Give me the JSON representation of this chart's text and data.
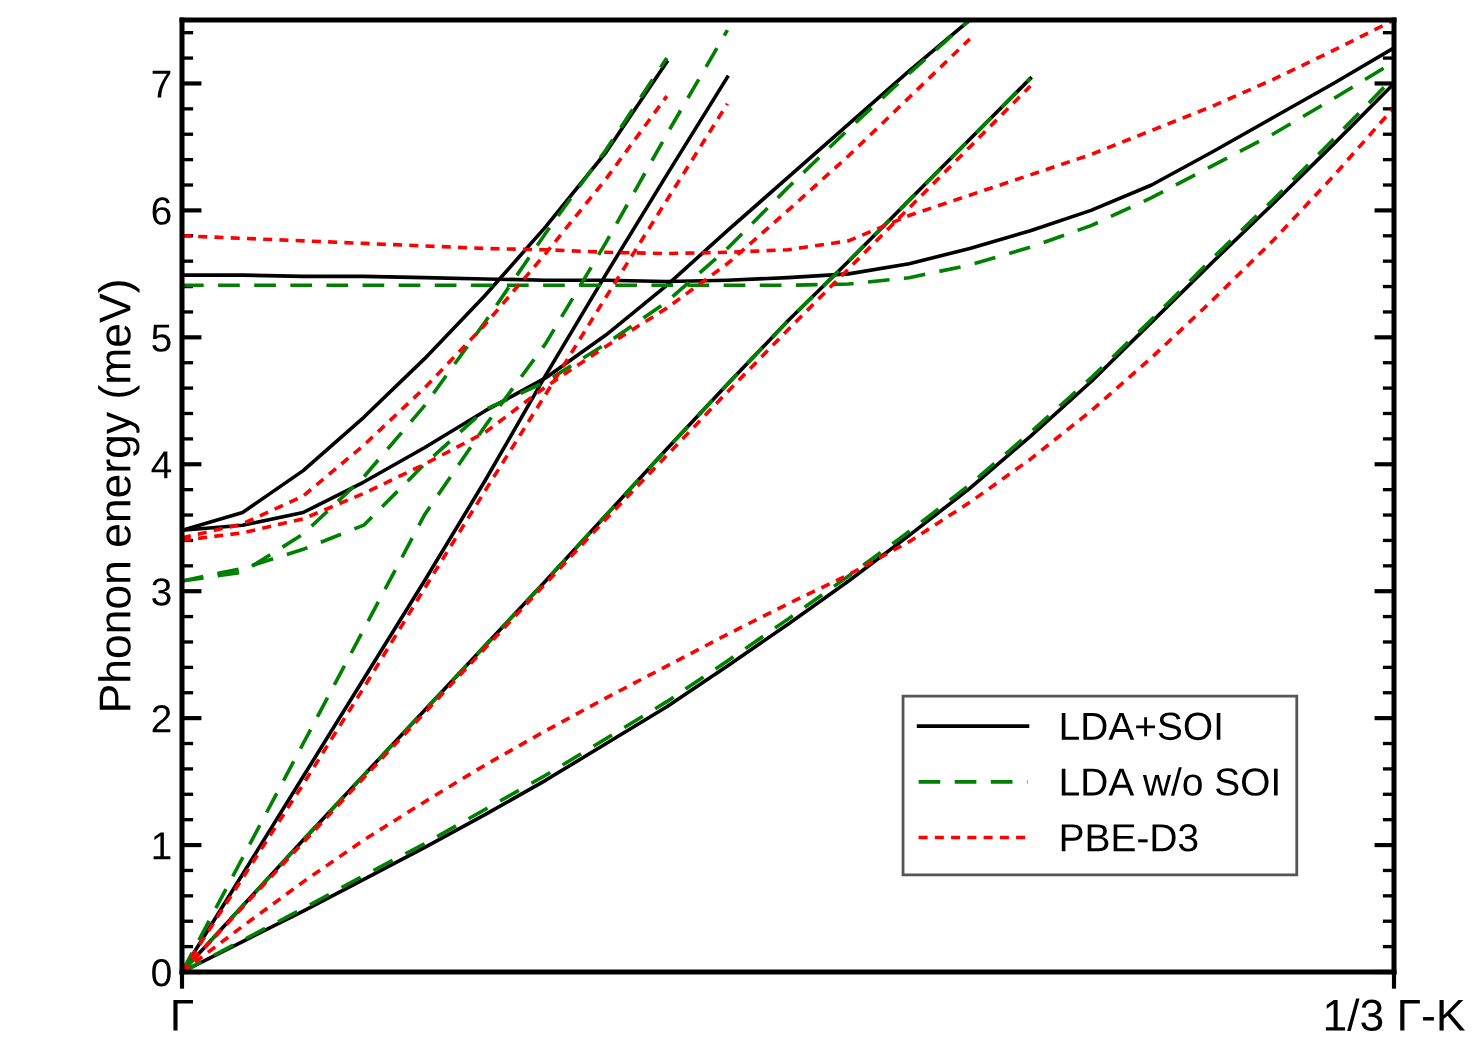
{
  "chart_data": {
    "type": "line",
    "ylabel": "Phonon energy (meV)",
    "categories": [
      "Γ",
      null,
      null,
      null,
      null,
      null,
      null,
      null,
      null,
      null,
      null,
      null,
      null,
      null,
      null,
      null,
      null,
      null,
      null,
      null,
      "1/3 Γ-K"
    ],
    "ylim": [
      0,
      7.5
    ],
    "yticks": [
      0,
      1,
      2,
      3,
      4,
      5,
      6,
      7
    ],
    "grid": false,
    "legend": "bottom right",
    "marker": "none",
    "series": [
      {
        "name": "LDA+SOI",
        "color": "#000000",
        "line_style": "solid",
        "values": [
          0,
          0.24,
          0.48,
          0.73,
          0.98,
          1.24,
          1.51,
          1.8,
          2.09,
          2.41,
          2.74,
          3.08,
          3.44,
          3.81,
          4.22,
          4.65,
          5.12,
          5.59,
          6.05,
          6.52,
          7.0
        ]
      },
      {
        "color": "#000000",
        "line_style": "solid",
        "values": [
          0,
          0.52,
          1.04,
          1.55,
          2.06,
          2.57,
          3.08,
          3.6,
          4.12,
          4.63,
          5.13,
          5.6,
          6.08,
          6.56,
          7.04,
          null,
          null,
          null,
          null,
          null,
          null
        ]
      },
      {
        "color": "#000000",
        "line_style": "solid",
        "values": [
          0,
          0.77,
          1.54,
          2.31,
          3.08,
          3.87,
          4.7,
          5.5,
          6.28,
          7.05,
          null,
          null,
          null,
          null,
          null,
          null,
          null,
          null,
          null,
          null,
          null
        ]
      },
      {
        "color": "#000000",
        "line_style": "solid",
        "values": [
          5.49,
          5.49,
          5.48,
          5.48,
          5.47,
          5.46,
          5.45,
          5.45,
          5.44,
          5.45,
          5.47,
          5.5,
          5.58,
          5.7,
          5.84,
          6.0,
          6.2,
          6.46,
          6.73,
          7.0,
          7.28
        ]
      },
      {
        "color": "#000000",
        "line_style": "solid",
        "values": [
          3.48,
          3.62,
          3.95,
          4.37,
          4.83,
          5.33,
          5.87,
          6.46,
          7.17,
          null,
          null,
          null,
          null,
          null,
          null,
          null,
          null,
          null,
          null,
          null,
          null
        ]
      },
      {
        "color": "#000000",
        "line_style": "solid",
        "values": [
          3.48,
          3.52,
          3.62,
          3.86,
          4.13,
          4.42,
          4.68,
          5.02,
          5.41,
          5.84,
          6.26,
          6.68,
          7.1,
          7.5,
          null,
          null,
          null,
          null,
          null,
          null,
          null
        ]
      },
      {
        "name": "LDA w/o SOI",
        "color": "#008000",
        "line_style": "dashed",
        "values": [
          0,
          0.25,
          0.5,
          0.76,
          1.01,
          1.28,
          1.55,
          1.84,
          2.13,
          2.45,
          2.78,
          3.12,
          3.47,
          3.84,
          4.25,
          4.68,
          5.14,
          5.62,
          6.08,
          6.56,
          7.05
        ]
      },
      {
        "color": "#008000",
        "line_style": "dashed",
        "values": [
          0,
          0.52,
          1.04,
          1.55,
          2.06,
          2.57,
          3.08,
          3.6,
          4.12,
          4.63,
          5.13,
          5.6,
          6.08,
          6.56,
          7.04,
          null,
          null,
          null,
          null,
          null,
          null
        ]
      },
      {
        "color": "#008000",
        "line_style": "dashed",
        "values": [
          0,
          0.9,
          1.8,
          2.7,
          3.6,
          4.3,
          4.95,
          5.75,
          6.6,
          7.42,
          null,
          null,
          null,
          null,
          null,
          null,
          null,
          null,
          null,
          null,
          null
        ]
      },
      {
        "color": "#008000",
        "line_style": "dashed",
        "values": [
          5.41,
          5.41,
          5.41,
          5.41,
          5.41,
          5.41,
          5.41,
          5.41,
          5.41,
          5.41,
          5.41,
          5.42,
          5.47,
          5.57,
          5.71,
          5.88,
          6.1,
          6.35,
          6.6,
          6.88,
          7.17
        ]
      },
      {
        "color": "#008000",
        "line_style": "dashed",
        "values": [
          3.08,
          3.15,
          3.45,
          3.9,
          4.46,
          5.12,
          5.82,
          6.48,
          7.2,
          null,
          null,
          null,
          null,
          null,
          null,
          null,
          null,
          null,
          null,
          null,
          null
        ]
      },
      {
        "color": "#008000",
        "line_style": "dashed",
        "values": [
          3.08,
          3.18,
          3.33,
          3.52,
          4.0,
          4.43,
          4.65,
          4.95,
          5.28,
          5.7,
          6.18,
          6.64,
          7.08,
          7.5,
          null,
          null,
          null,
          null,
          null,
          null,
          null
        ]
      },
      {
        "name": "PBE-D3",
        "color": "#ff0000",
        "line_style": "dotted",
        "values": [
          0,
          0.36,
          0.71,
          1.04,
          1.34,
          1.63,
          1.9,
          2.16,
          2.41,
          2.66,
          2.9,
          3.13,
          3.39,
          3.7,
          4.04,
          4.42,
          4.84,
          5.29,
          5.76,
          6.27,
          6.81
        ]
      },
      {
        "color": "#ff0000",
        "line_style": "dotted",
        "values": [
          0,
          0.51,
          1.02,
          1.53,
          2.04,
          2.55,
          3.06,
          3.57,
          4.07,
          4.57,
          5.06,
          5.54,
          6.02,
          6.5,
          6.98,
          null,
          null,
          null,
          null,
          null,
          null
        ]
      },
      {
        "color": "#ff0000",
        "line_style": "dotted",
        "values": [
          0,
          0.74,
          1.48,
          2.24,
          3.02,
          3.79,
          4.55,
          5.32,
          6.08,
          6.84,
          null,
          null,
          null,
          null,
          null,
          null,
          null,
          null,
          null,
          null,
          null
        ]
      },
      {
        "color": "#ff0000",
        "line_style": "dotted",
        "values": [
          5.8,
          5.78,
          5.76,
          5.74,
          5.72,
          5.7,
          5.69,
          5.67,
          5.66,
          5.67,
          5.69,
          5.76,
          5.96,
          6.12,
          6.28,
          6.44,
          6.63,
          6.82,
          7.03,
          7.26,
          7.5
        ]
      },
      {
        "color": "#ff0000",
        "line_style": "dotted",
        "values": [
          3.42,
          3.53,
          3.75,
          4.15,
          4.6,
          5.1,
          5.66,
          6.25,
          6.9,
          null,
          null,
          null,
          null,
          null,
          null,
          null,
          null,
          null,
          null,
          null,
          null
        ]
      },
      {
        "color": "#ff0000",
        "line_style": "dotted",
        "values": [
          3.4,
          3.46,
          3.57,
          3.77,
          4.0,
          4.25,
          4.61,
          4.93,
          5.23,
          5.58,
          6.0,
          6.43,
          6.89,
          7.35,
          null,
          null,
          null,
          null,
          null,
          null,
          null
        ]
      }
    ]
  }
}
